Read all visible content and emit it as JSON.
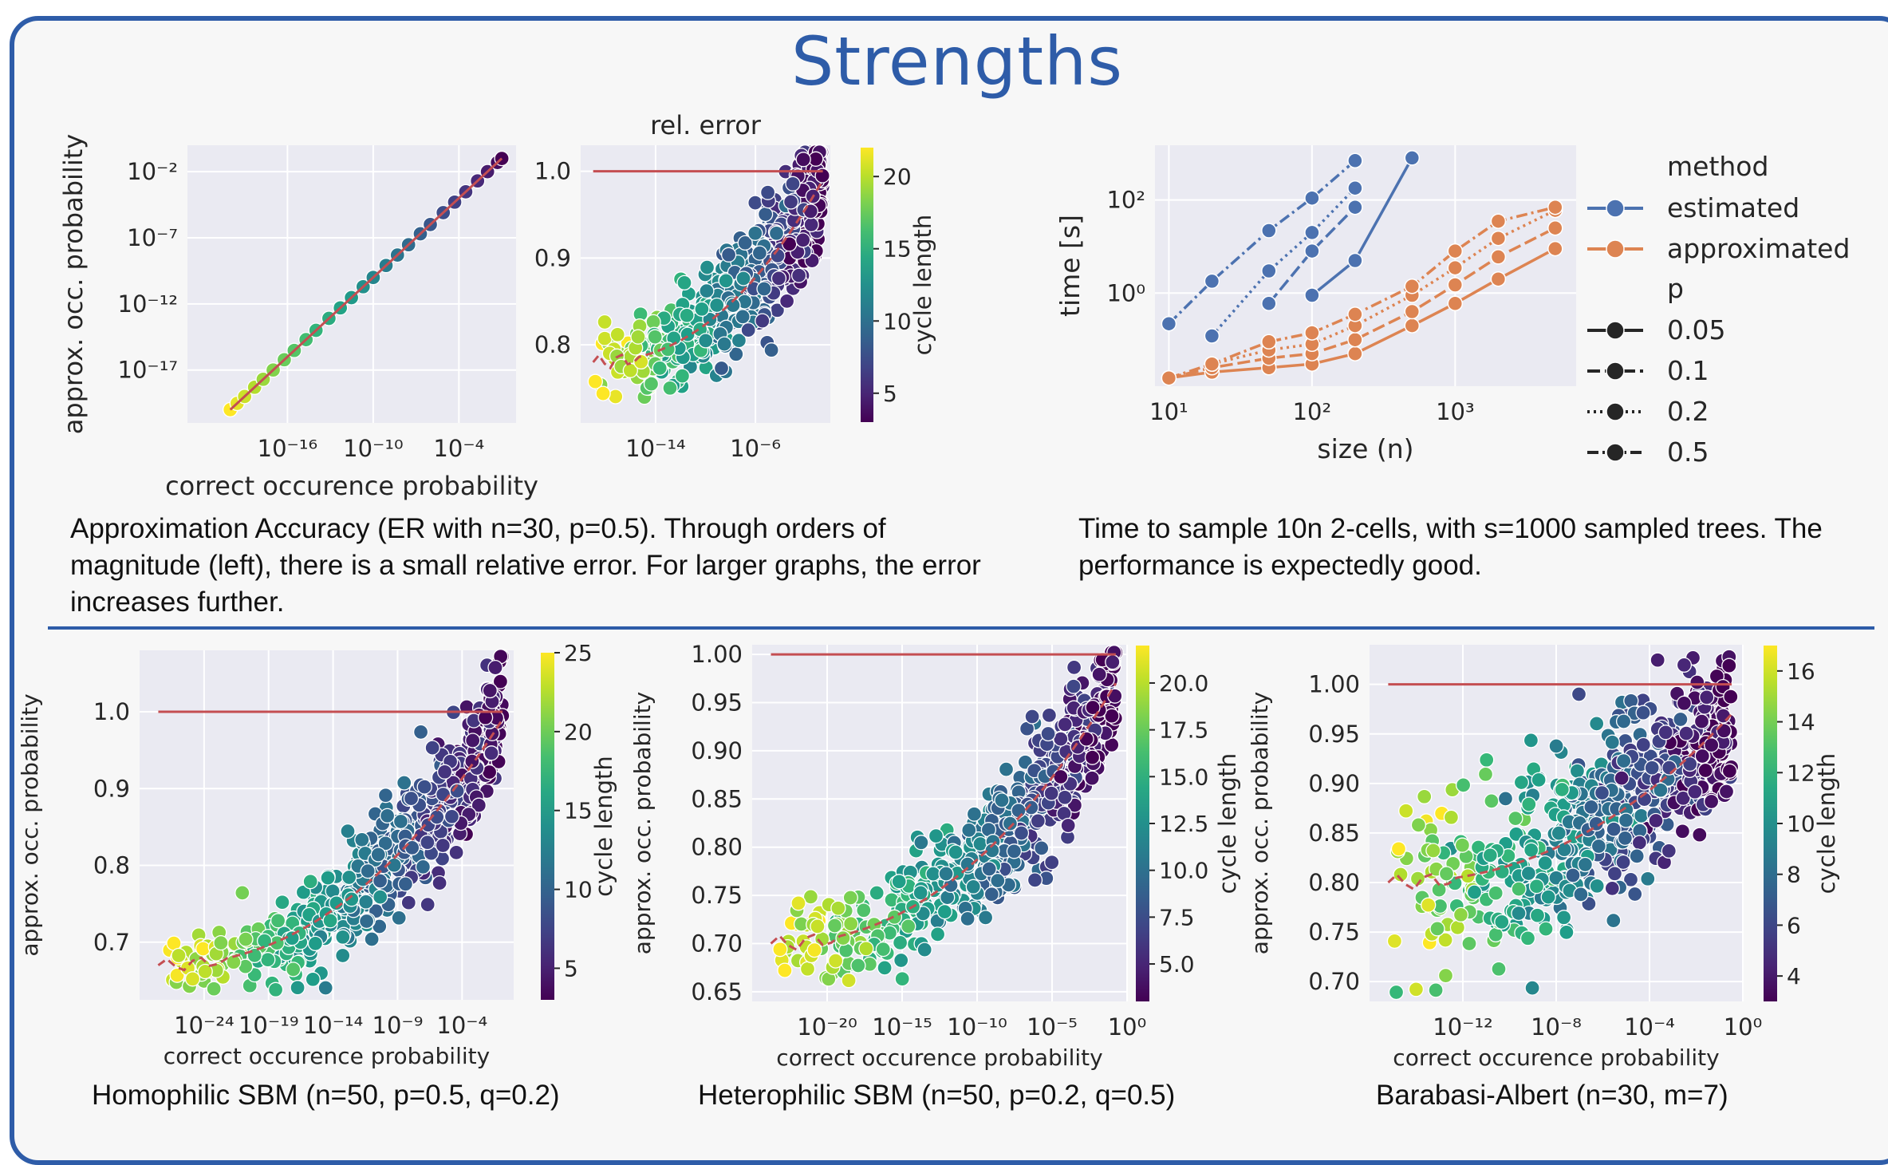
{
  "page": {
    "title": "Strengths",
    "caption_accuracy": "Approximation Accuracy (ER with n=30, p=0.5). Through orders of magnitude (left), there is a small relative error. For larger graphs, the error increases further.",
    "caption_timing": "Time to sample 10n 2-cells, with s=1000 sampled trees. The performance is expectedly good.",
    "caption_homophilic": "Homophilic SBM (n=50, p=0.5, q=0.2)",
    "caption_heterophilic": "Heterophilic SBM (n=50, p=0.2, q=0.5)",
    "caption_barabasi": "Barabasi-Albert (n=30, m=7)"
  },
  "colors": {
    "accent": "#2e5ca8",
    "estimated": "#4c72b0",
    "approximated": "#dd8452",
    "reference_line": "#c44e52",
    "plot_bg": "#eaeaf2"
  },
  "chart_data": [
    {
      "id": "er_loglog",
      "type": "scatter",
      "xlabel": "correct occurence probability",
      "ylabel": "approx. occ. probability",
      "x_scale": "log",
      "y_scale": "log",
      "xlim": [
        1e-23,
        1
      ],
      "ylim": [
        1e-21,
        1
      ],
      "xticks": [
        {
          "v": 1e-16,
          "l": "10⁻¹⁶"
        },
        {
          "v": 1e-10,
          "l": "10⁻¹⁰"
        },
        {
          "v": 0.0001,
          "l": "10⁻⁴"
        }
      ],
      "yticks": [
        {
          "v": 0.01,
          "l": "10⁻²"
        },
        {
          "v": 1e-07,
          "l": "10⁻⁷"
        },
        {
          "v": 1e-12,
          "l": "10⁻¹²"
        },
        {
          "v": 1e-17,
          "l": "10⁻¹⁷"
        }
      ],
      "points": [
        [
          1e-20,
          1e-20
        ],
        [
          3e-20,
          3e-20
        ],
        [
          1e-19,
          1e-19
        ],
        [
          5e-19,
          5e-19
        ],
        [
          2e-18,
          2e-18
        ],
        [
          1e-17,
          1e-17
        ],
        [
          6e-17,
          6e-17
        ],
        [
          3e-16,
          3e-16
        ],
        [
          2e-15,
          2e-15
        ],
        [
          1e-14,
          1e-14
        ],
        [
          8e-14,
          8e-14
        ],
        [
          5e-13,
          5e-13
        ],
        [
          3e-12,
          3e-12
        ],
        [
          2e-11,
          2e-11
        ],
        [
          1e-10,
          1e-10
        ],
        [
          8e-10,
          8e-10
        ],
        [
          5e-09,
          5e-09
        ],
        [
          3e-08,
          3e-08
        ],
        [
          2e-07,
          2e-07
        ],
        [
          1e-06,
          1e-06
        ],
        [
          8e-06,
          8e-06
        ],
        [
          5e-05,
          5e-05
        ],
        [
          0.0003,
          0.0003
        ],
        [
          0.002,
          0.002
        ],
        [
          0.01,
          0.01
        ],
        [
          0.05,
          0.05
        ],
        [
          0.1,
          0.1
        ]
      ],
      "legend": "none"
    },
    {
      "id": "er_relerr",
      "type": "scatter",
      "title": "rel. error",
      "x_scale": "log",
      "xlim": [
        1e-20,
        1
      ],
      "ylim": [
        0.71,
        1.03
      ],
      "xticks": [
        {
          "v": 1e-14,
          "l": "10⁻¹⁴"
        },
        {
          "v": 1e-06,
          "l": "10⁻⁶"
        }
      ],
      "yticks": [
        {
          "v": 1.0,
          "l": "1.0"
        },
        {
          "v": 0.9,
          "l": "0.9"
        },
        {
          "v": 0.8,
          "l": "0.8"
        }
      ],
      "colorbar": {
        "label": "cycle length",
        "min": 3,
        "max": 22,
        "ticks": [
          5,
          10,
          15,
          20
        ]
      },
      "cloud": {
        "y_start": 0.78,
        "y_end": 0.99,
        "spread_start": 0.03,
        "spread_end": 0.05,
        "color_start": 22,
        "color_end": 3
      },
      "legend": "none"
    },
    {
      "id": "timing",
      "type": "line",
      "xlabel": "size (n)",
      "ylabel": "time [s]",
      "x_scale": "log",
      "y_scale": "log",
      "xlim": [
        8,
        7000
      ],
      "ylim": [
        0.01,
        1500
      ],
      "xticks": [
        {
          "v": 10,
          "l": "10¹"
        },
        {
          "v": 100,
          "l": "10²"
        },
        {
          "v": 1000,
          "l": "10³"
        }
      ],
      "yticks": [
        {
          "v": 100,
          "l": "10²"
        },
        {
          "v": 1,
          "l": "10⁰"
        }
      ],
      "legend_title_method": "method",
      "legend_title_p": "p",
      "series": [
        {
          "method": "estimated",
          "p": "0.05",
          "x": [
            100,
            200,
            500
          ],
          "y": [
            0.9,
            5,
            800
          ]
        },
        {
          "method": "estimated",
          "p": "0.1",
          "x": [
            50,
            100,
            200
          ],
          "y": [
            0.6,
            8,
            70
          ]
        },
        {
          "method": "estimated",
          "p": "0.2",
          "x": [
            20,
            50,
            100,
            200
          ],
          "y": [
            0.12,
            3,
            20,
            180
          ]
        },
        {
          "method": "estimated",
          "p": "0.5",
          "x": [
            10,
            20,
            50,
            100,
            200
          ],
          "y": [
            0.22,
            1.8,
            22,
            110,
            700
          ]
        },
        {
          "method": "approximated",
          "p": "0.05",
          "x": [
            10,
            20,
            50,
            100,
            200,
            500,
            1000,
            2000,
            5000
          ],
          "y": [
            0.015,
            0.02,
            0.025,
            0.03,
            0.05,
            0.2,
            0.6,
            2,
            9
          ]
        },
        {
          "method": "approximated",
          "p": "0.1",
          "x": [
            10,
            20,
            50,
            100,
            200,
            500,
            1000,
            2000,
            5000
          ],
          "y": [
            0.015,
            0.025,
            0.04,
            0.05,
            0.1,
            0.4,
            1.5,
            6,
            25
          ]
        },
        {
          "method": "approximated",
          "p": "0.2",
          "x": [
            20,
            50,
            100,
            200,
            500,
            1000,
            2000,
            5000
          ],
          "y": [
            0.03,
            0.06,
            0.08,
            0.2,
            0.9,
            3.5,
            15,
            60
          ]
        },
        {
          "method": "approximated",
          "p": "0.5",
          "x": [
            10,
            20,
            50,
            100,
            200,
            500,
            1000,
            2000,
            5000
          ],
          "y": [
            0.015,
            0.03,
            0.09,
            0.14,
            0.35,
            1.4,
            8,
            35,
            70
          ]
        }
      ],
      "legend_methods": [
        "estimated",
        "approximated"
      ],
      "legend_p": [
        "0.05",
        "0.1",
        "0.2",
        "0.5"
      ],
      "legend": "right"
    },
    {
      "id": "homophilic",
      "type": "scatter",
      "xlabel": "correct occurence probability",
      "ylabel": "approx. occ. probability",
      "x_scale": "log",
      "xlim": [
        1e-29,
        1
      ],
      "ylim": [
        0.625,
        1.08
      ],
      "xticks": [
        {
          "v": 1e-24,
          "l": "10⁻²⁴"
        },
        {
          "v": 1e-19,
          "l": "10⁻¹⁹"
        },
        {
          "v": 1e-14,
          "l": "10⁻¹⁴"
        },
        {
          "v": 1e-09,
          "l": "10⁻⁹"
        },
        {
          "v": 0.0001,
          "l": "10⁻⁴"
        }
      ],
      "yticks": [
        {
          "v": 1.0,
          "l": "1.0"
        },
        {
          "v": 0.9,
          "l": "0.9"
        },
        {
          "v": 0.8,
          "l": "0.8"
        },
        {
          "v": 0.7,
          "l": "0.7"
        }
      ],
      "colorbar": {
        "label": "cycle length",
        "min": 3,
        "max": 25,
        "ticks": [
          5,
          10,
          15,
          20,
          25
        ]
      },
      "cloud": {
        "y_start": 0.67,
        "y_end": 0.99,
        "spread_start": 0.025,
        "spread_end": 0.06,
        "color_start": 25,
        "color_end": 3
      },
      "legend": "none"
    },
    {
      "id": "heterophilic",
      "type": "scatter",
      "xlabel": "correct occurence probability",
      "ylabel": "approx. occ. probability",
      "x_scale": "log",
      "xlim": [
        1e-25,
        1
      ],
      "ylim": [
        0.64,
        1.01
      ],
      "xticks": [
        {
          "v": 1e-20,
          "l": "10⁻²⁰"
        },
        {
          "v": 1e-15,
          "l": "10⁻¹⁵"
        },
        {
          "v": 1e-10,
          "l": "10⁻¹⁰"
        },
        {
          "v": 1e-05,
          "l": "10⁻⁵"
        },
        {
          "v": 1,
          "l": "10⁰"
        }
      ],
      "yticks": [
        {
          "v": 1.0,
          "l": "1.00"
        },
        {
          "v": 0.95,
          "l": "0.95"
        },
        {
          "v": 0.9,
          "l": "0.90"
        },
        {
          "v": 0.85,
          "l": "0.85"
        },
        {
          "v": 0.8,
          "l": "0.80"
        },
        {
          "v": 0.75,
          "l": "0.75"
        },
        {
          "v": 0.7,
          "l": "0.70"
        },
        {
          "v": 0.65,
          "l": "0.65"
        }
      ],
      "colorbar": {
        "label": "cycle length",
        "min": 3,
        "max": 22,
        "ticks": [
          5,
          7.5,
          10,
          12.5,
          15,
          17.5,
          20
        ],
        "tick_labels": [
          "5.0",
          "7.5",
          "10.0",
          "12.5",
          "15.0",
          "17.5",
          "20.0"
        ]
      },
      "cloud": {
        "y_start": 0.7,
        "y_end": 0.97,
        "spread_start": 0.03,
        "spread_end": 0.05,
        "color_start": 22,
        "color_end": 3
      },
      "legend": "none"
    },
    {
      "id": "barabasi",
      "type": "scatter",
      "xlabel": "correct occurence probability",
      "ylabel": "approx. occ. probability",
      "x_scale": "log",
      "xlim": [
        1e-16,
        1
      ],
      "ylim": [
        0.68,
        1.04
      ],
      "xticks": [
        {
          "v": 1e-12,
          "l": "10⁻¹²"
        },
        {
          "v": 1e-08,
          "l": "10⁻⁸"
        },
        {
          "v": 0.0001,
          "l": "10⁻⁴"
        },
        {
          "v": 1,
          "l": "10⁰"
        }
      ],
      "yticks": [
        {
          "v": 1.0,
          "l": "1.00"
        },
        {
          "v": 0.95,
          "l": "0.95"
        },
        {
          "v": 0.9,
          "l": "0.90"
        },
        {
          "v": 0.85,
          "l": "0.85"
        },
        {
          "v": 0.8,
          "l": "0.80"
        },
        {
          "v": 0.75,
          "l": "0.75"
        },
        {
          "v": 0.7,
          "l": "0.70"
        }
      ],
      "colorbar": {
        "label": "cycle length",
        "min": 3,
        "max": 17,
        "ticks": [
          4,
          6,
          8,
          10,
          12,
          14,
          16
        ]
      },
      "cloud": {
        "y_start": 0.8,
        "y_end": 0.97,
        "spread_start": 0.07,
        "spread_end": 0.06,
        "color_start": 16,
        "color_end": 3
      },
      "legend": "none"
    }
  ]
}
